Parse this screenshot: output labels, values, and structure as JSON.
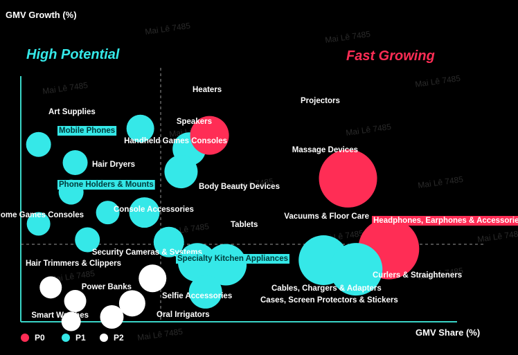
{
  "chart_data": {
    "type": "scatter",
    "ylabel": "GMV Growth (%)",
    "xlabel": "GMV Share (%)",
    "quadrants": {
      "top_left": "High Potential",
      "top_right": "Fast Growing"
    },
    "colors": {
      "P0": "#ff2d55",
      "P1": "#35e8e8",
      "P2": "#ffffff",
      "text": "#ffffff",
      "axis": "#3ad6c8",
      "divider": "#9a9a9a"
    },
    "legend": [
      {
        "name": "P0",
        "priority": "P0"
      },
      {
        "name": "P1",
        "priority": "P1"
      },
      {
        "name": "P2",
        "priority": "P2"
      }
    ],
    "watermark": "Mai Lê 7485",
    "divider": {
      "x": 33,
      "y": 32
    },
    "xlim": [
      0,
      100
    ],
    "ylim": [
      0,
      100
    ],
    "points": [
      {
        "name": "Heaters",
        "x": 28,
        "y": 83,
        "size": 20,
        "priority": "P1"
      },
      {
        "name": "Art Supplies",
        "x": 3,
        "y": 76,
        "size": 18,
        "priority": "P1"
      },
      {
        "name": "Mobile Phones",
        "x": 12,
        "y": 68,
        "size": 18,
        "priority": "P1"
      },
      {
        "name": "Speakers",
        "x": 40,
        "y": 74,
        "size": 24,
        "priority": "P1"
      },
      {
        "name": "Handheld Games Consoles",
        "x": 38,
        "y": 64,
        "size": 24,
        "priority": "P1"
      },
      {
        "name": "Hair Dryers",
        "x": 11,
        "y": 55,
        "size": 18,
        "priority": "P1"
      },
      {
        "name": "Phone Holders & Mounts",
        "x": 20,
        "y": 46,
        "size": 17,
        "priority": "P1"
      },
      {
        "name": "Body Beauty Devices",
        "x": 29,
        "y": 46,
        "size": 22,
        "priority": "P1"
      },
      {
        "name": "Home Games Consoles",
        "x": 3,
        "y": 41,
        "size": 17,
        "priority": "P1"
      },
      {
        "name": "Console Accessories",
        "x": 15,
        "y": 34,
        "size": 18,
        "priority": "P1"
      },
      {
        "name": "Tablets",
        "x": 35,
        "y": 33,
        "size": 22,
        "priority": "P1"
      },
      {
        "name": "Projectors",
        "x": 45,
        "y": 80,
        "size": 28,
        "priority": "P0"
      },
      {
        "name": "Massage Devices",
        "x": 79,
        "y": 61,
        "size": 42,
        "priority": "P0"
      },
      {
        "name": "Vacuums & Floor Care",
        "x": 73,
        "y": 25,
        "size": 36,
        "priority": "P1"
      },
      {
        "name": "Headphones, Earphones & Accessories",
        "x": 89,
        "y": 30,
        "size": 44,
        "priority": "P0"
      },
      {
        "name": "Curlers & Straighteners",
        "x": 81,
        "y": 21,
        "size": 38,
        "priority": "P1"
      },
      {
        "name": "Security Cameras & Systems",
        "x": 31,
        "y": 17,
        "size": 20,
        "priority": "P2"
      },
      {
        "name": "Specialty Kitchen Appliances",
        "x": 42,
        "y": 24,
        "size": 28,
        "priority": "P1"
      },
      {
        "name": "Cables, Chargers & Adapters",
        "x": 49,
        "y": 23,
        "size": 30,
        "priority": "P1"
      },
      {
        "name": "Cases, Screen Protectors & Stickers",
        "x": 44,
        "y": 11,
        "size": 24,
        "priority": "P1"
      },
      {
        "name": "Hair Trimmers & Clippers",
        "x": 6,
        "y": 13,
        "size": 16,
        "priority": "P2"
      },
      {
        "name": "Power Banks",
        "x": 12,
        "y": 7,
        "size": 16,
        "priority": "P2"
      },
      {
        "name": "Selfie Accessories",
        "x": 26,
        "y": 6,
        "size": 19,
        "priority": "P2"
      },
      {
        "name": "Oral Irrigators",
        "x": 21,
        "y": 0,
        "size": 17,
        "priority": "P2"
      },
      {
        "name": "Smart Watches",
        "x": 11,
        "y": -2,
        "size": 14,
        "priority": "P2"
      }
    ]
  }
}
